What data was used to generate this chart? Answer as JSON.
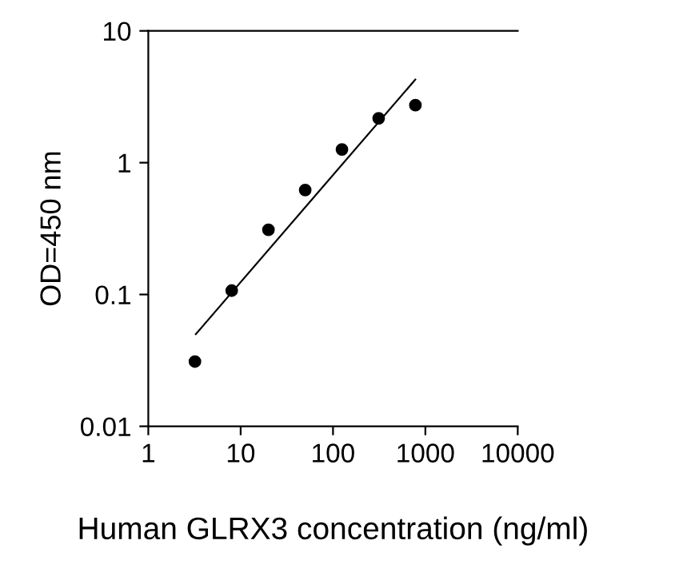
{
  "chart_data": {
    "type": "scatter",
    "xlabel": "Human GLRX3 concentration (ng/ml)",
    "ylabel": "OD=450 nm",
    "log": "xy",
    "xlim": [
      1,
      10000
    ],
    "xticks": [
      1,
      10,
      100,
      1000,
      10000
    ],
    "ylim": [
      0.01,
      10
    ],
    "yticks": [
      0.01,
      0.1,
      1,
      10
    ],
    "grid": false,
    "legend": false,
    "series": [
      {
        "color": "#000000",
        "marker": "circle",
        "x": [
          3.2,
          8,
          20,
          50,
          125,
          312,
          780
        ],
        "values": [
          0.031,
          0.107,
          0.31,
          0.62,
          1.26,
          2.17,
          2.73
        ]
      },
      {
        "type": "line",
        "color": "#000000",
        "marker": "none",
        "line_style": "solid",
        "x": [
          3.27,
          778
        ],
        "values": [
          0.05,
          4.27
        ]
      }
    ]
  }
}
